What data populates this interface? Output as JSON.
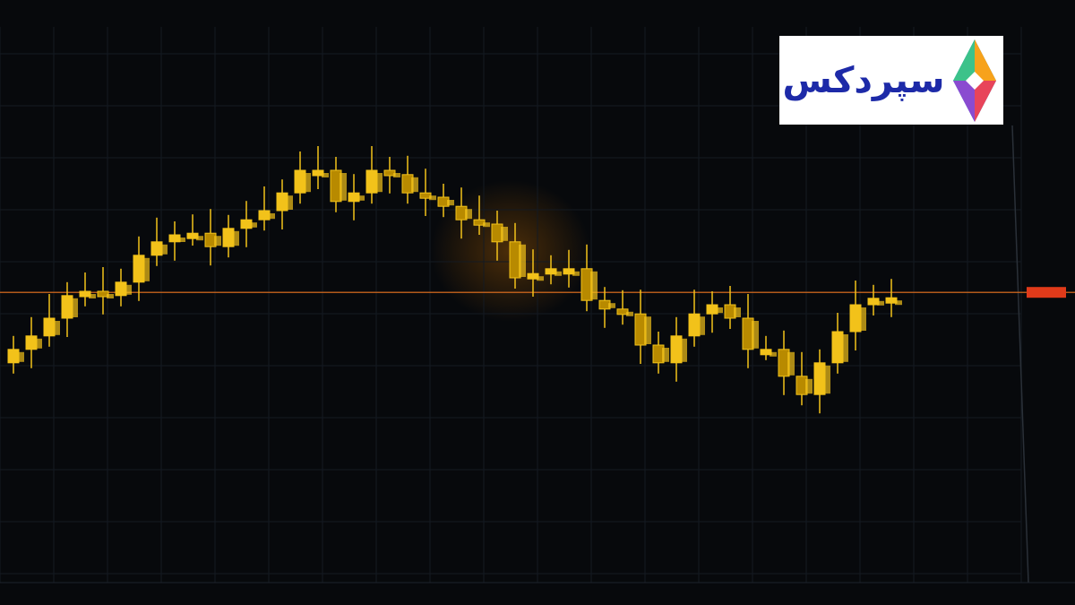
{
  "chart_data": {
    "type": "candlestick",
    "title": "",
    "xlabel": "",
    "ylabel": "",
    "ylim": [
      0,
      100
    ],
    "grid": true,
    "reference_line": 52.3,
    "closes": [
      41.7,
      44.2,
      47.5,
      51.7,
      52.5,
      51.7,
      54.2,
      59.2,
      61.7,
      63,
      63.3,
      60.8,
      64.2,
      65.8,
      67.5,
      70.8,
      75,
      75,
      69.2,
      70.8,
      75,
      74.2,
      70.8,
      70,
      68.3,
      65.8,
      65,
      61.7,
      55,
      55.8,
      56.7,
      56.7,
      50.8,
      49.2,
      48.3,
      42.5,
      39.2,
      44.2,
      48.3,
      50,
      47.5,
      41.7,
      41.7,
      36.7,
      33.3,
      39.2,
      45,
      50,
      51.2,
      51.3
    ],
    "colors": {
      "candle": "#f2c21a",
      "candle_dark": "#b88a00",
      "reference_line": "#d2691e",
      "price_tag": "#e03a1a",
      "background": "#07090c",
      "grid": "#141a22"
    }
  },
  "logo": {
    "text": "سپردکس",
    "colors": [
      "#f7a21b",
      "#e8445a",
      "#8a4bd0",
      "#2f9ee8",
      "#3cc28a"
    ]
  }
}
